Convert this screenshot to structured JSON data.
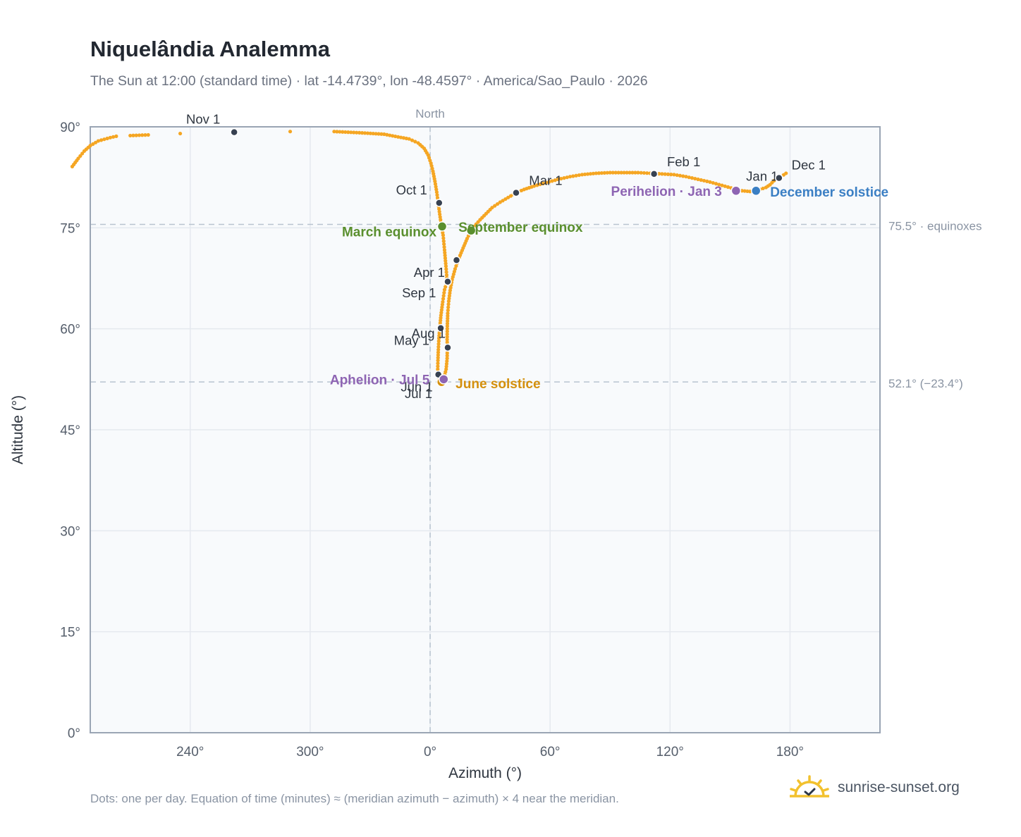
{
  "title": "Niquelândia Analemma",
  "subtitle": "The Sun at 12:00 (standard time) · lat -14.4739°, lon -48.4597° · America/Sao_Paulo · 2026",
  "footnote": "Dots: one per day. Equation of time (minutes) ≈ (meridian azimuth − azimuth) × 4 near the meridian.",
  "brand": {
    "name": "sunrise-sunset.org",
    "icon": "sun-logo-icon"
  },
  "colors": {
    "curve": "#f5a623",
    "month_marker": "#374151",
    "equinox": "#5a8f2e",
    "june_solstice": "#d4900e",
    "december_solstice": "#3b7fc4",
    "apsis": "#8e65b3",
    "plot_bg": "#f8fafc",
    "grid": "#e5e9ef",
    "frame": "#9aa5b4",
    "reference_line": "#b8c4d0"
  },
  "chart_data": {
    "type": "scatter",
    "xlabel": "Azimuth (°)",
    "ylabel": "Altitude (°)",
    "x_unit": "degrees azimuth, continuous through North (0°)",
    "xlim": [
      190,
      225
    ],
    "ylim": [
      0,
      90
    ],
    "x_ticks": [
      {
        "value": 240,
        "label": "240°"
      },
      {
        "value": 300,
        "label": "300°"
      },
      {
        "value": 0,
        "label": "0°"
      },
      {
        "value": 60,
        "label": "60°"
      },
      {
        "value": 120,
        "label": "120°"
      },
      {
        "value": 180,
        "label": "180°"
      }
    ],
    "y_ticks": [
      {
        "value": 0,
        "label": "0°"
      },
      {
        "value": 15,
        "label": "15°"
      },
      {
        "value": 30,
        "label": "30°"
      },
      {
        "value": 45,
        "label": "45°"
      },
      {
        "value": 60,
        "label": "60°"
      },
      {
        "value": 75,
        "label": "75°"
      },
      {
        "value": 90,
        "label": "90°"
      }
    ],
    "grid": true,
    "north_line": {
      "azimuth": 0,
      "label": "North"
    },
    "reference_lines": [
      {
        "altitude": 75.5,
        "label": "75.5° · equinoxes"
      },
      {
        "altitude": 52.1,
        "label": "52.1° (−23.4°)"
      }
    ],
    "path": [
      [
        174.5,
        82.4
      ],
      [
        178,
        83.1
      ],
      [
        181,
        84.1
      ],
      [
        184,
        85.3
      ],
      [
        187,
        86.4
      ],
      [
        190,
        87.2
      ],
      [
        194,
        87.9
      ],
      [
        200,
        88.4
      ],
      [
        203,
        88.6
      ],
      [
        172,
        82.0
      ],
      [
        170,
        81.4
      ],
      [
        168,
        81.0
      ],
      [
        165,
        80.7
      ],
      [
        163,
        80.5
      ],
      [
        160,
        80.4
      ],
      [
        156,
        80.5
      ],
      [
        152,
        80.8
      ],
      [
        146,
        81.3
      ],
      [
        140,
        81.8
      ],
      [
        134,
        82.2
      ],
      [
        128,
        82.6
      ],
      [
        122,
        82.9
      ],
      [
        116,
        83.0
      ],
      [
        110,
        83.1
      ],
      [
        104,
        83.2
      ],
      [
        97,
        83.2
      ],
      [
        90,
        83.2
      ],
      [
        83,
        83.1
      ],
      [
        76,
        82.9
      ],
      [
        70,
        82.6
      ],
      [
        64,
        82.2
      ],
      [
        58,
        81.7
      ],
      [
        52,
        81.2
      ],
      [
        47,
        80.7
      ],
      [
        43,
        80.2
      ],
      [
        39,
        79.5
      ],
      [
        35,
        78.8
      ],
      [
        31,
        78.0
      ],
      [
        28,
        77.1
      ],
      [
        25,
        76.2
      ],
      [
        22,
        75.2
      ],
      [
        20.5,
        74.6
      ],
      [
        18.5,
        73.4
      ],
      [
        16.5,
        72.0
      ],
      [
        14,
        70.2
      ],
      [
        12.5,
        68.9
      ],
      [
        11,
        67.3
      ],
      [
        10,
        65.7
      ],
      [
        9.3,
        64.1
      ],
      [
        8.8,
        62.3
      ],
      [
        8.6,
        60.4
      ],
      [
        8.5,
        58.4
      ],
      [
        8.6,
        57.2
      ],
      [
        8.5,
        55.6
      ],
      [
        8.0,
        54.0
      ],
      [
        7.0,
        52.8
      ],
      [
        6.0,
        52.2
      ],
      [
        5.3,
        52.1
      ],
      [
        4.8,
        52.3
      ],
      [
        4.3,
        52.7
      ],
      [
        4.0,
        53.2
      ],
      [
        3.8,
        54.0
      ],
      [
        3.9,
        55.3
      ],
      [
        4.1,
        56.9
      ],
      [
        4.4,
        58.6
      ],
      [
        4.8,
        60.1
      ],
      [
        5.4,
        62.0
      ],
      [
        6.3,
        64.0
      ],
      [
        7.2,
        65.8
      ],
      [
        8.5,
        67.1
      ],
      [
        7.9,
        69.3
      ],
      [
        7.2,
        71.7
      ],
      [
        6.5,
        73.9
      ],
      [
        5.6,
        75.4
      ],
      [
        4.8,
        77.0
      ],
      [
        4.1,
        78.6
      ],
      [
        3.3,
        80.3
      ],
      [
        2.4,
        81.9
      ],
      [
        1.4,
        83.4
      ],
      [
        0.4,
        84.6
      ],
      [
        -1.0,
        85.8
      ],
      [
        -3.0,
        86.8
      ],
      [
        -6.0,
        87.6
      ],
      [
        -10.5,
        88.2
      ],
      [
        -16.0,
        88.5
      ],
      [
        -23.0,
        88.9
      ],
      [
        -34.0,
        89.1
      ],
      [
        -48.0,
        89.3
      ],
      [
        -70.0,
        89.3
      ],
      [
        -98.0,
        89.2
      ],
      [
        -125.0,
        89.0
      ],
      [
        -141.0,
        88.8
      ],
      [
        -150.0,
        88.7
      ]
    ],
    "month_markers": [
      {
        "label": "Jan 1",
        "x": 174.5,
        "y": 82.4
      },
      {
        "label": "Feb 1",
        "x": 112,
        "y": 83.0
      },
      {
        "label": "Mar 1",
        "x": 43,
        "y": 80.2
      },
      {
        "label": "Apr 1",
        "x": 8.8,
        "y": 67.0
      },
      {
        "label": "May 1",
        "x": 5.3,
        "y": 60.1
      },
      {
        "label": "Jun 1",
        "x": 4.1,
        "y": 53.2
      },
      {
        "label": "Jul 1",
        "x": 6.0,
        "y": 52.2
      },
      {
        "label": "Aug 1",
        "x": 8.8,
        "y": 57.2
      },
      {
        "label": "Sep 1",
        "x": 13.2,
        "y": 70.2
      },
      {
        "label": "Oct 1",
        "x": 4.5,
        "y": 78.7
      },
      {
        "label": "Nov 1",
        "x": -98.0,
        "y": 89.2
      },
      {
        "label": "Dec 1",
        "x": 174.5,
        "y": 82.4
      }
    ],
    "events": [
      {
        "label": "March equinox",
        "x": 6.0,
        "y": 75.2,
        "kind": "equinox"
      },
      {
        "label": "September equinox",
        "x": 20.5,
        "y": 74.6,
        "kind": "equinox"
      },
      {
        "label": "June solstice",
        "x": 5.7,
        "y": 52.1,
        "kind": "june_solstice"
      },
      {
        "label": "December solstice",
        "x": 163,
        "y": 80.5,
        "kind": "december_solstice"
      },
      {
        "label": "Perihelion · Jan 3",
        "x": 153,
        "y": 80.5,
        "kind": "apsis"
      },
      {
        "label": "Aphelion · Jul 5",
        "x": 6.8,
        "y": 52.5,
        "kind": "apsis"
      }
    ]
  }
}
